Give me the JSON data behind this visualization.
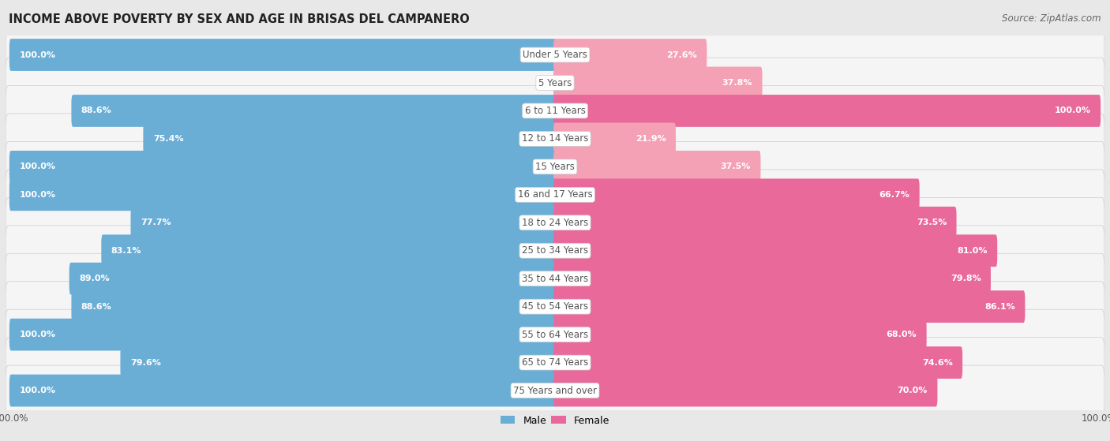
{
  "title": "INCOME ABOVE POVERTY BY SEX AND AGE IN BRISAS DEL CAMPANERO",
  "source": "Source: ZipAtlas.com",
  "categories": [
    "Under 5 Years",
    "5 Years",
    "6 to 11 Years",
    "12 to 14 Years",
    "15 Years",
    "16 and 17 Years",
    "18 to 24 Years",
    "25 to 34 Years",
    "35 to 44 Years",
    "45 to 54 Years",
    "55 to 64 Years",
    "65 to 74 Years",
    "75 Years and over"
  ],
  "male": [
    100.0,
    0.0,
    88.6,
    75.4,
    100.0,
    100.0,
    77.7,
    83.1,
    89.0,
    88.6,
    100.0,
    79.6,
    100.0
  ],
  "female": [
    27.6,
    37.8,
    100.0,
    21.9,
    37.5,
    66.7,
    73.5,
    81.0,
    79.8,
    86.1,
    68.0,
    74.6,
    70.0
  ],
  "male_color": "#6aaed6",
  "female_color_light": "#f4a0b5",
  "female_color_dark": "#e8699a",
  "male_label": "Male",
  "female_label": "Female",
  "axis_max": 100.0,
  "bg_color": "#e8e8e8",
  "row_bg_color": "#f5f5f5",
  "title_fontsize": 10.5,
  "cat_fontsize": 8.5,
  "val_fontsize": 8.0,
  "source_fontsize": 8.5,
  "center_label_color": "#555555"
}
